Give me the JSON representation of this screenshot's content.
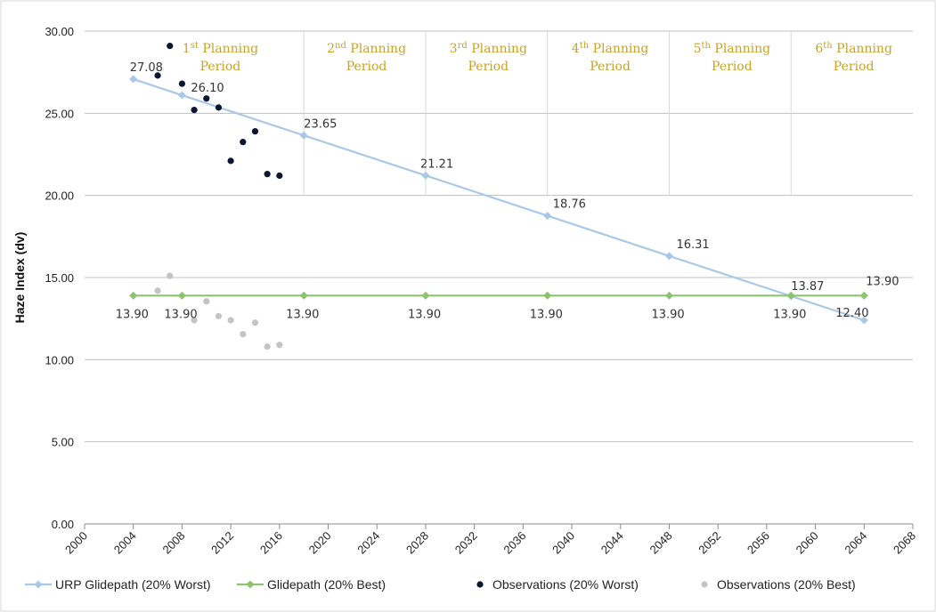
{
  "chart_data": {
    "type": "line",
    "title": "",
    "ylabel": "Haze Index (dv)",
    "xlabel": "",
    "xlim": [
      2000,
      2068
    ],
    "ylim": [
      0,
      30
    ],
    "x_ticks": [
      "2000",
      "2004",
      "2008",
      "2012",
      "2016",
      "2020",
      "2024",
      "2028",
      "2032",
      "2036",
      "2040",
      "2044",
      "2048",
      "2052",
      "2056",
      "2060",
      "2064",
      "2068"
    ],
    "y_ticks": [
      "0.00",
      "5.00",
      "10.00",
      "15.00",
      "20.00",
      "25.00",
      "30.00"
    ],
    "grid": "horizontal",
    "legend_position": "bottom",
    "planning_periods": [
      {
        "ordinal": "1",
        "suffix": "st",
        "word": "Planning",
        "line2": "Period",
        "start": 2004,
        "end": 2018
      },
      {
        "ordinal": "2",
        "suffix": "nd",
        "word": "Planning",
        "line2": "Period",
        "start": 2018,
        "end": 2028
      },
      {
        "ordinal": "3",
        "suffix": "rd",
        "word": "Planning",
        "line2": "Period",
        "start": 2028,
        "end": 2038
      },
      {
        "ordinal": "4",
        "suffix": "th",
        "word": "Planning",
        "line2": "Period",
        "start": 2038,
        "end": 2048
      },
      {
        "ordinal": "5",
        "suffix": "th",
        "word": "Planning",
        "line2": "Period",
        "start": 2048,
        "end": 2058
      },
      {
        "ordinal": "6",
        "suffix": "th",
        "word": "Planning",
        "line2": "Period",
        "start": 2058,
        "end": 2068
      }
    ],
    "series": [
      {
        "name": "URP Glidepath (20% Worst)",
        "kind": "line",
        "color": "#a9c8e8",
        "x": [
          2004,
          2008,
          2018,
          2028,
          2038,
          2048,
          2058,
          2064
        ],
        "y": [
          27.08,
          26.1,
          23.65,
          21.21,
          18.76,
          16.31,
          13.87,
          12.4
        ],
        "labels": [
          "27.08",
          "26.10",
          "23.65",
          "21.21",
          "18.76",
          "16.31",
          "13.87",
          "12.40"
        ]
      },
      {
        "name": "Glidepath (20% Best)",
        "kind": "line",
        "color": "#8dc26f",
        "x": [
          2004,
          2008,
          2018,
          2028,
          2038,
          2048,
          2058,
          2064
        ],
        "y": [
          13.9,
          13.9,
          13.9,
          13.9,
          13.9,
          13.9,
          13.9,
          13.9
        ],
        "labels": [
          "13.90",
          "13.90",
          "13.90",
          "13.90",
          "13.90",
          "13.90",
          "13.90",
          "13.90"
        ]
      },
      {
        "name": "Observations (20% Worst)",
        "kind": "scatter",
        "color": "#0b1633",
        "x": [
          2006,
          2007,
          2008,
          2009,
          2010,
          2011,
          2012,
          2013,
          2014,
          2015,
          2016
        ],
        "y": [
          27.3,
          29.1,
          26.8,
          25.2,
          25.9,
          25.35,
          22.1,
          23.25,
          23.9,
          21.3,
          21.2
        ]
      },
      {
        "name": "Observations (20% Best)",
        "kind": "scatter",
        "color": "#c4c4c4",
        "x": [
          2006,
          2007,
          2009,
          2010,
          2011,
          2012,
          2013,
          2014,
          2015,
          2016
        ],
        "y": [
          14.2,
          15.1,
          12.4,
          13.55,
          12.65,
          12.4,
          11.55,
          12.25,
          10.8,
          10.9
        ]
      }
    ]
  }
}
